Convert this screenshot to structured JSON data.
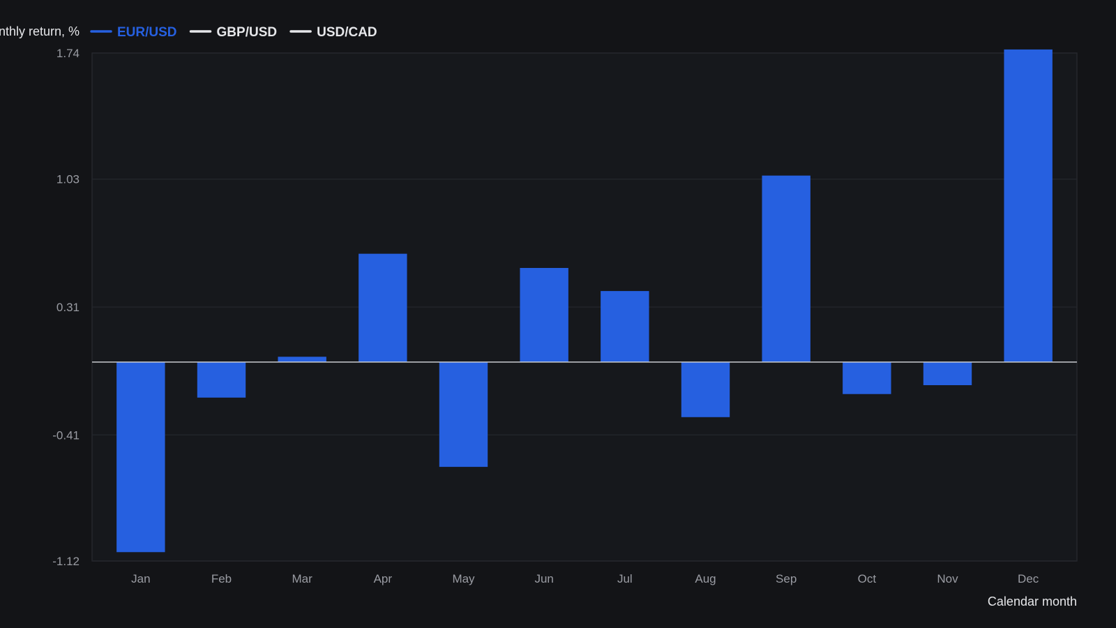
{
  "chart_data": {
    "type": "bar",
    "ylabel": "Monthly return, %",
    "xlabel": "Calendar month",
    "categories": [
      "Jan",
      "Feb",
      "Mar",
      "Apr",
      "May",
      "Jun",
      "Jul",
      "Aug",
      "Sep",
      "Oct",
      "Nov",
      "Dec"
    ],
    "series": [
      {
        "name": "EUR/USD",
        "color": "#2660e0",
        "values": [
          -1.07,
          -0.2,
          0.03,
          0.61,
          -0.59,
          0.53,
          0.4,
          -0.31,
          1.05,
          -0.18,
          -0.13,
          1.76
        ]
      }
    ],
    "legend": [
      {
        "name": "EUR/USD",
        "color": "#2660e0",
        "active": true
      },
      {
        "name": "GBP/USD",
        "color": "#e6e7ea",
        "active": false
      },
      {
        "name": "USD/CAD",
        "color": "#e6e7ea",
        "active": false
      }
    ],
    "ylim": [
      -1.12,
      1.74
    ],
    "yticks": [
      -1.12,
      -0.41,
      0.31,
      1.03,
      1.74
    ],
    "ytick_labels": [
      "-1.12",
      "-0.41",
      "0.31",
      "1.03",
      "1.74"
    ],
    "grid": true,
    "legend_position": "top-left",
    "colors": {
      "background": "#131417",
      "plot_background": "#16181c",
      "grid": "#25272c",
      "zero_line": "#c9cbd0"
    }
  }
}
